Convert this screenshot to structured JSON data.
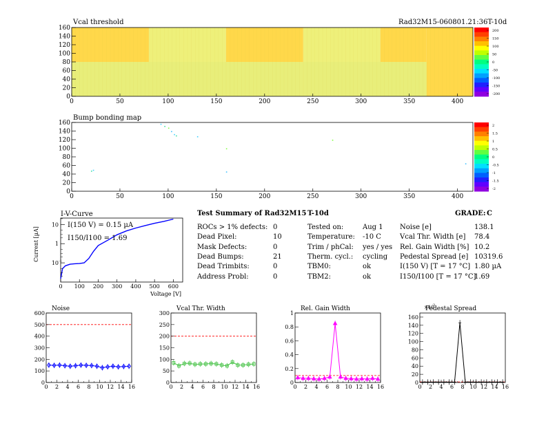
{
  "header": {
    "title": "Vcal threshold",
    "module": "Rad32M15-060801.21:36T-10d"
  },
  "summary": {
    "title": "Test Summary of Rad32M15",
    "subtitle": "T-10d",
    "grade_label": "GRADE:",
    "grade": "C",
    "col1": [
      {
        "label": "ROCs > 1% defects:",
        "value": "0"
      },
      {
        "label": "Dead Pixel:",
        "value": "10"
      },
      {
        "label": "Mask Defects:",
        "value": "0"
      },
      {
        "label": "Dead Bumps:",
        "value": "21"
      },
      {
        "label": "Dead Trimbits:",
        "value": "0"
      },
      {
        "label": "Address Probl:",
        "value": "0"
      }
    ],
    "col2": [
      {
        "label": "Tested on:",
        "value": "Aug 1"
      },
      {
        "label": "Temperature:",
        "value": "-10 C"
      },
      {
        "label": "Trim / phCal:",
        "value": "yes / yes"
      },
      {
        "label": "Therm. cycl.:",
        "value": "cycling"
      },
      {
        "label": "TBM0:",
        "value": "ok"
      },
      {
        "label": "TBM2:",
        "value": "ok"
      }
    ],
    "col3": [
      {
        "label": "Noise [e]",
        "value": "138.1"
      },
      {
        "label": "Vcal Thr. Width [e]",
        "value": "78.4"
      },
      {
        "label": "Rel. Gain Width [%]",
        "value": "10.2"
      },
      {
        "label": "Pedestal Spread [e]",
        "value": "10319.6"
      },
      {
        "label": "I(150 V) [T = 17 °C]",
        "value": "1.80 µA"
      },
      {
        "label": "I150/I100 [T = 17 °C]",
        "value": "1.69"
      }
    ]
  },
  "iv_notes": {
    "i150": "I(150 V) = 0.15 µA",
    "ratio": "I150/I100 = 1.69"
  },
  "chart_data": [
    {
      "type": "heatmap",
      "title": "Vcal threshold",
      "x_ticks": [
        0,
        50,
        100,
        150,
        200,
        250,
        300,
        350,
        400
      ],
      "y_ticks": [
        0,
        20,
        40,
        60,
        80,
        100,
        120,
        140,
        160
      ],
      "xlim": [
        0,
        416
      ],
      "ylim": [
        0,
        160
      ],
      "bands": [
        {
          "x": [
            0,
            80
          ],
          "y": [
            80,
            160
          ],
          "color": "#ffd84a"
        },
        {
          "x": [
            160,
            240
          ],
          "y": [
            80,
            160
          ],
          "color": "#ffd84a"
        },
        {
          "x": [
            320,
            368
          ],
          "y": [
            80,
            160
          ],
          "color": "#ffd84a"
        },
        {
          "x": [
            368,
            416
          ],
          "y": [
            0,
            160
          ],
          "color": "#ffd84a"
        },
        {
          "x": [
            80,
            160
          ],
          "y": [
            80,
            160
          ],
          "color": "#eef07a"
        },
        {
          "x": [
            240,
            320
          ],
          "y": [
            80,
            160
          ],
          "color": "#eef07a"
        },
        {
          "x": [
            0,
            416
          ],
          "y": [
            0,
            80
          ],
          "color": "#e8ee7a"
        }
      ],
      "palette_ticks": [
        "200",
        "150",
        "100",
        "50",
        "0",
        "-50",
        "-100",
        "-150",
        "-200"
      ]
    },
    {
      "type": "heatmap",
      "title": "Bump bonding map",
      "x_ticks": [
        0,
        50,
        100,
        150,
        200,
        250,
        300,
        350,
        400
      ],
      "y_ticks": [
        0,
        20,
        40,
        60,
        80,
        100,
        120,
        140,
        160
      ],
      "xlim": [
        0,
        416
      ],
      "ylim": [
        0,
        160
      ],
      "points": [
        [
          92,
          157
        ],
        [
          96,
          152
        ],
        [
          100,
          148
        ],
        [
          103,
          140
        ],
        [
          106,
          133
        ],
        [
          108,
          130
        ],
        [
          160,
          100
        ],
        [
          160,
          46
        ],
        [
          22,
          50
        ],
        [
          20,
          48
        ],
        [
          270,
          120
        ],
        [
          408,
          65
        ],
        [
          130,
          128
        ]
      ],
      "palette_ticks": [
        "2",
        "1.5",
        "1",
        "0.5",
        "0",
        "-0.5",
        "-1",
        "-1.5",
        "-2"
      ]
    },
    {
      "type": "line",
      "title": "I-V-Curve",
      "xlabel": "Voltage [V]",
      "ylabel": "Current [µA]",
      "x": [
        0,
        10,
        25,
        50,
        75,
        100,
        125,
        150,
        175,
        200,
        250,
        300,
        350,
        400,
        450,
        500,
        550,
        600
      ],
      "y": [
        0.015,
        0.05,
        0.07,
        0.085,
        0.09,
        0.092,
        0.1,
        0.17,
        0.4,
        0.8,
        1.5,
        2.9,
        4.6,
        6.5,
        8.8,
        11.5,
        14.5,
        19
      ],
      "x_ticks": [
        0,
        100,
        200,
        300,
        400,
        500,
        600
      ],
      "y_ticks": [
        "10^-1",
        "1",
        "10"
      ],
      "xlim": [
        0,
        650
      ],
      "ylim": [
        0.01,
        30
      ]
    },
    {
      "type": "line",
      "title": "Noise",
      "x": [
        0.5,
        1.5,
        2.5,
        3.5,
        4.5,
        5.5,
        6.5,
        7.5,
        8.5,
        9.5,
        10.5,
        11.5,
        12.5,
        13.5,
        14.5,
        15.5
      ],
      "y": [
        150,
        148,
        150,
        145,
        140,
        145,
        150,
        148,
        146,
        140,
        128,
        135,
        140,
        135,
        138,
        140
      ],
      "ref": 500,
      "x_ticks": [
        0,
        2,
        4,
        6,
        8,
        10,
        12,
        14,
        16
      ],
      "y_ticks": [
        0,
        100,
        200,
        300,
        400,
        500,
        600
      ],
      "xlim": [
        0,
        16
      ],
      "ylim": [
        0,
        600
      ]
    },
    {
      "type": "line",
      "title": "Vcal Thr. Width",
      "x": [
        0.5,
        1.5,
        2.5,
        3.5,
        4.5,
        5.5,
        6.5,
        7.5,
        8.5,
        9.5,
        10.5,
        11.5,
        12.5,
        13.5,
        14.5,
        15.5
      ],
      "y": [
        85,
        72,
        82,
        83,
        78,
        80,
        80,
        82,
        80,
        75,
        72,
        88,
        75,
        75,
        78,
        80
      ],
      "ref": 200,
      "x_ticks": [
        0,
        2,
        4,
        6,
        8,
        10,
        12,
        14,
        16
      ],
      "y_ticks": [
        0,
        50,
        100,
        150,
        200,
        250,
        300
      ],
      "xlim": [
        0,
        16
      ],
      "ylim": [
        0,
        300
      ]
    },
    {
      "type": "line",
      "title": "Rel. Gain Width",
      "x": [
        0.5,
        1.5,
        2.5,
        3.5,
        4.5,
        5.5,
        6.5,
        7.5,
        8.5,
        9.5,
        10.5,
        11.5,
        12.5,
        13.5,
        14.5,
        15.5
      ],
      "y": [
        0.07,
        0.06,
        0.06,
        0.055,
        0.05,
        0.06,
        0.08,
        0.85,
        0.08,
        0.06,
        0.055,
        0.05,
        0.055,
        0.05,
        0.06,
        0.05
      ],
      "ref": 0.1,
      "x_ticks": [
        0,
        2,
        4,
        6,
        8,
        10,
        12,
        14,
        16
      ],
      "y_ticks": [
        "0",
        "0.2",
        "0.4",
        "0.6",
        "0.8",
        "1"
      ],
      "xlim": [
        0,
        16
      ],
      "ylim": [
        0,
        1
      ]
    },
    {
      "type": "line",
      "title": "Pedestal Spread",
      "x": [
        0.5,
        1.5,
        2.5,
        3.5,
        4.5,
        5.5,
        6.5,
        7.5,
        8.5,
        9.5,
        10.5,
        11.5,
        12.5,
        13.5,
        14.5,
        15.5
      ],
      "y": [
        1,
        1,
        1,
        1,
        1,
        1,
        1,
        146,
        1,
        1,
        1,
        1,
        1,
        1,
        1,
        1
      ],
      "ref": 1.5,
      "x_ticks": [
        0,
        2,
        4,
        6,
        8,
        10,
        12,
        14,
        16
      ],
      "y_ticks": [
        0,
        20,
        40,
        60,
        80,
        100,
        120,
        140,
        160
      ],
      "exponent": "×10^3",
      "xlim": [
        0,
        16
      ],
      "ylim": [
        0,
        170
      ]
    }
  ]
}
